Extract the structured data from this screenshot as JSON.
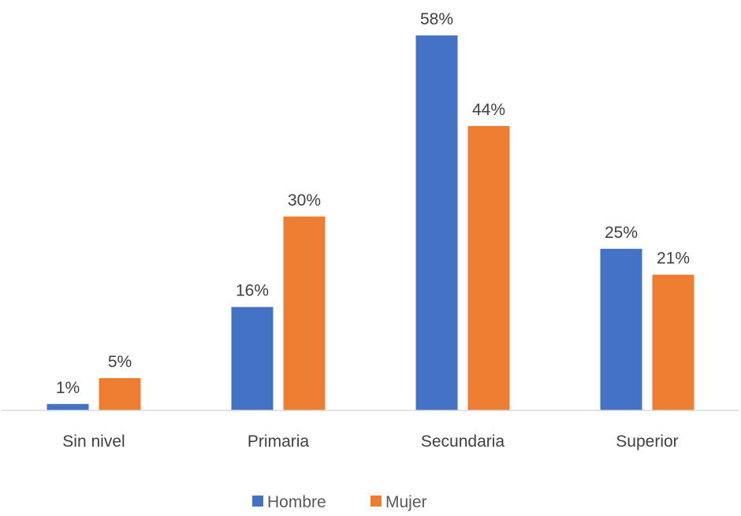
{
  "chart_data": {
    "type": "bar",
    "categories": [
      "Sin nivel",
      "Primaria",
      "Secundaria",
      "Superior"
    ],
    "series": [
      {
        "name": "Hombre",
        "values": [
          1,
          16,
          58,
          25
        ],
        "labels": [
          "1%",
          "16%",
          "58%",
          "25%"
        ],
        "color": "#4472C4"
      },
      {
        "name": "Mujer",
        "values": [
          5,
          30,
          44,
          21
        ],
        "labels": [
          "5%",
          "30%",
          "44%",
          "21%"
        ],
        "color": "#ED7D31"
      }
    ],
    "ylim": [
      0,
      58
    ],
    "grid": false,
    "legend_position": "bottom"
  }
}
